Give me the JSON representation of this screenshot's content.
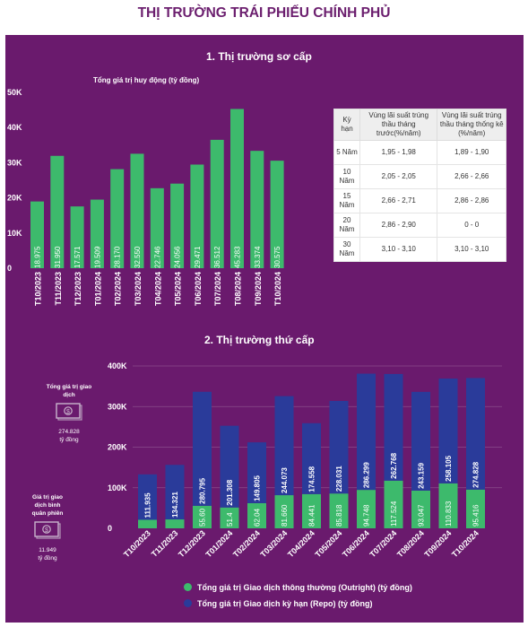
{
  "page_title": "THỊ TRƯỜNG TRÁI PHIẾU CHÍNH PHỦ",
  "primary": {
    "section_title": "1. Thị trường sơ cấp",
    "chart_title": "Tổng giá trị huy động (tỷ đồng)",
    "table": {
      "headers": [
        "Kỳ hạn",
        "Vùng lãi suất trúng thầu tháng trước(%/năm)",
        "Vùng lãi suất trúng thầu tháng thống kê (%/năm)"
      ],
      "rows": [
        [
          "5 Năm",
          "1,95 - 1,98",
          "1,89 - 1,90"
        ],
        [
          "10 Năm",
          "2,05 - 2,05",
          "2,66 - 2,66"
        ],
        [
          "15 Năm",
          "2,66 - 2,71",
          "2,86 - 2,86"
        ],
        [
          "20 Năm",
          "2,86 - 2,90",
          "0 - 0"
        ],
        [
          "30 Năm",
          "3,10 - 3,10",
          "3,10 - 3,10"
        ]
      ]
    }
  },
  "secondary": {
    "section_title": "2. Thị trường thứ cấp",
    "side_stats": [
      {
        "label": "Tổng giá trị giao dịch",
        "value": "274.828",
        "unit": "tỷ đồng",
        "icon": "money-icon"
      },
      {
        "label": "Giá trị giao dịch bình quân phiên",
        "value": "11.949",
        "unit": "tỷ đồng",
        "icon": "money-icon"
      }
    ]
  },
  "colors": {
    "background": "#6a1a6d",
    "title": "#6b1e6e",
    "green": "#3dba6c",
    "blue": "#2a3b9a"
  },
  "chart_data": [
    {
      "type": "bar",
      "title": "Tổng giá trị huy động (tỷ đồng)",
      "categories": [
        "T10/2023",
        "T11/2023",
        "T12/2023",
        "T01/2024",
        "T02/2024",
        "T03/2024",
        "T04/2024",
        "T05/2024",
        "T06/2024",
        "T07/2024",
        "T08/2024",
        "T09/2024",
        "T10/2024"
      ],
      "values": [
        18975,
        31950,
        17571,
        19509,
        28170,
        32550,
        22746,
        24056,
        29471,
        36512,
        45283,
        33374,
        30575
      ],
      "value_labels": [
        "18.975",
        "31.950",
        "17.571",
        "19.509",
        "28.170",
        "32.550",
        "22.746",
        "24.056",
        "29.471",
        "36.512",
        "45.283",
        "33.374",
        "30.575"
      ],
      "ylim": [
        0,
        50000
      ],
      "yticks": [
        "0",
        "10K",
        "20K",
        "30K",
        "40K",
        "50K"
      ],
      "grid": false
    },
    {
      "type": "bar",
      "stacked": true,
      "categories": [
        "T10/2023",
        "T11/2023",
        "T12/2023",
        "T01/2024",
        "T02/2024",
        "T03/2024",
        "T04/2024",
        "T05/2024",
        "T06/2024",
        "T07/2024",
        "T08/2024",
        "T09/2024",
        "T10/2024"
      ],
      "series": [
        {
          "name": "Tổng giá trị Giao dịch thông thường (Outright) (tỷ đồng)",
          "color": "#3dba6c",
          "values": [
            21000,
            22000,
            55600,
            51400,
            62040,
            81660,
            84441,
            85818,
            94748,
            117524,
            93047,
            110833,
            95416
          ],
          "labels": [
            "",
            "",
            "55.60",
            "51.4",
            "62.04",
            "81.660",
            "84.441",
            "85.818",
            "94.748",
            "117.524",
            "93.047",
            "110.833",
            "95.416"
          ]
        },
        {
          "name": "Tổng giá trị Giao dịch kỳ hạn (Repo) (tỷ đồng)",
          "color": "#2a3b9a",
          "values": [
            111935,
            134321,
            280795,
            201308,
            149805,
            244073,
            174558,
            228031,
            286299,
            262768,
            243159,
            258105,
            274828
          ],
          "labels": [
            "111.935",
            "134.321",
            "280.795",
            "201.308",
            "149.805",
            "244.073",
            "174.558",
            "228.031",
            "286.299",
            "262.768",
            "243.159",
            "258.105",
            "274.828"
          ]
        }
      ],
      "ylim": [
        0,
        400000
      ],
      "yticks": [
        "0",
        "100K",
        "200K",
        "300K",
        "400K"
      ],
      "grid": true,
      "legend": "bottom"
    }
  ]
}
